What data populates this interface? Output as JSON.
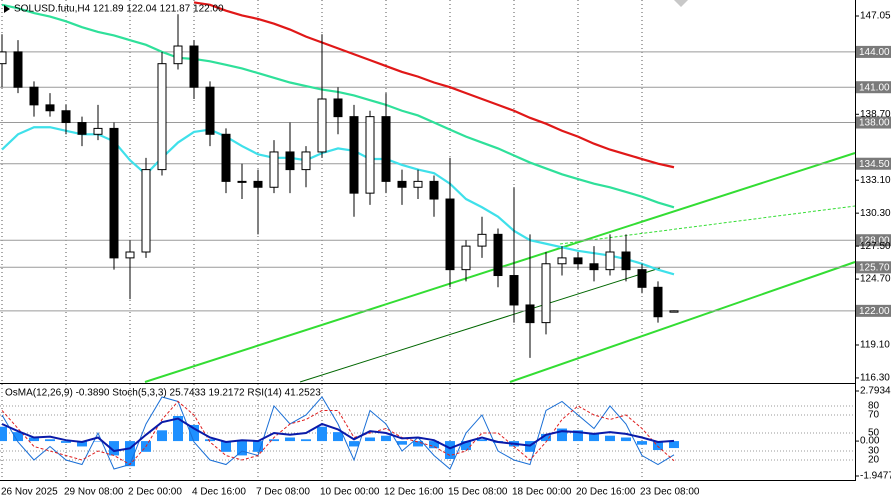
{
  "chart_data": [
    {
      "type": "candlestick",
      "title": "SOLUSD.futu,H4 121.89 122.04 121.87 122.00",
      "categories": [
        "26 Nov 2025",
        null,
        null,
        null,
        "29 Nov 08:00",
        null,
        null,
        null,
        "2 Dec 00:00",
        null,
        null,
        null,
        "4 Dec 16:00",
        null,
        null,
        null,
        "7 Dec 08:00",
        null,
        null,
        null,
        "10 Dec 00:00",
        null,
        null,
        null,
        "12 Dec 16:00",
        null,
        null,
        null,
        "15 Dec 08:00",
        null,
        null,
        null,
        "18 Dec 00:00",
        null,
        null,
        null,
        "20 Dec 16:00",
        null,
        null,
        null,
        "23 Dec 08:00",
        null,
        null
      ],
      "open": [
        143,
        144,
        141,
        139.5,
        139,
        138,
        137,
        137.5,
        126.5,
        127,
        134,
        143,
        144.5,
        141,
        137,
        133,
        133,
        132.5,
        135.5,
        134,
        135.5,
        140,
        138.5,
        132,
        138.5,
        133,
        132.5,
        133,
        131.5,
        125.5,
        127.5,
        128.5,
        125,
        122.5,
        121,
        126,
        126.5,
        126,
        125.5,
        127,
        125.5,
        124,
        121.89
      ],
      "high": [
        145.5,
        145,
        141.5,
        140.5,
        139.5,
        138.5,
        139.5,
        138,
        128,
        135,
        144,
        147.2,
        145,
        141.5,
        137.5,
        134.5,
        134,
        136.5,
        138,
        136,
        145.5,
        141,
        139.5,
        139,
        140.5,
        134,
        134,
        133.5,
        135,
        128,
        130,
        129,
        132.5,
        128.5,
        127,
        127.5,
        127,
        127.5,
        128.5,
        128.5,
        126,
        124.5,
        122.04
      ],
      "low": [
        141,
        140.5,
        138.5,
        138.5,
        137,
        136,
        136.5,
        125.5,
        123,
        126.5,
        133.5,
        142.5,
        140,
        136,
        132,
        131.5,
        128.5,
        132,
        132,
        132.5,
        135,
        137,
        130,
        131,
        132,
        131,
        131.5,
        130,
        124,
        124.5,
        126.5,
        124,
        121,
        118,
        120,
        125,
        125.5,
        124.5,
        125,
        124.5,
        123.5,
        121,
        121.87
      ],
      "close": [
        144,
        141,
        139.5,
        139,
        138,
        137,
        137.5,
        126.5,
        127,
        134,
        143,
        144.5,
        141,
        137,
        133,
        133,
        132.5,
        135.5,
        134,
        135.5,
        140,
        138.5,
        132,
        138.5,
        133,
        132.5,
        133,
        131.5,
        125.5,
        127.5,
        128.5,
        125,
        122.5,
        121,
        126,
        126.5,
        126,
        125.5,
        127,
        125.5,
        124,
        121.5,
        122.0
      ],
      "up_color": "#ffffff",
      "down_color": "#000000",
      "lines": [
        {
          "color": "#e01818",
          "values": [
            null,
            null,
            null,
            null,
            null,
            null,
            null,
            null,
            null,
            null,
            null,
            null,
            148.2,
            148.0,
            147.5,
            147.1,
            146.8,
            146.4,
            145.9,
            145.3,
            144.8,
            144.3,
            143.8,
            143.3,
            142.8,
            142.3,
            141.9,
            141.4,
            141.0,
            140.5,
            140.0,
            139.5,
            139.0,
            138.4,
            137.9,
            137.3,
            136.8,
            136.2,
            135.7,
            135.3,
            134.9,
            134.5,
            134.2
          ]
        },
        {
          "color": "#2fe09a",
          "values": [
            148.0,
            147.7,
            147.3,
            147.0,
            146.6,
            146.1,
            145.7,
            145.4,
            145.0,
            144.6,
            144.0,
            143.5,
            143.4,
            143.2,
            142.9,
            142.6,
            142.2,
            141.8,
            141.4,
            141.1,
            140.8,
            140.6,
            140.3,
            139.9,
            139.5,
            139.0,
            138.6,
            138.0,
            137.4,
            136.8,
            136.3,
            135.8,
            135.2,
            134.6,
            134.1,
            133.6,
            133.2,
            132.8,
            132.5,
            132.1,
            131.7,
            131.2,
            130.8
          ]
        },
        {
          "color": "#3fe0ea",
          "values": [
            135.7,
            137.0,
            137.6,
            137.6,
            137.3,
            137.0,
            137.0,
            136.4,
            134.8,
            133.6,
            135.0,
            136.3,
            137.2,
            137.4,
            136.8,
            136.0,
            135.3,
            135.0,
            135.0,
            134.8,
            135.4,
            135.8,
            135.6,
            134.9,
            134.9,
            134.4,
            134.0,
            133.7,
            132.8,
            131.5,
            130.8,
            130.0,
            128.8,
            128.0,
            127.7,
            127.4,
            127.1,
            126.9,
            126.7,
            126.4,
            126.0,
            125.5,
            125.1
          ]
        }
      ],
      "ylim": [
        115.87,
        148.41
      ],
      "yticks": [
        147.05,
        {
          "value": 138.7,
          "label": "138.70"
        },
        {
          "value": 133.1,
          "label": "133.10"
        },
        {
          "value": 130.3,
          "label": "130.30"
        },
        {
          "value": 127.5,
          "label": "127.50"
        },
        {
          "value": 124.7,
          "label": "124.70"
        },
        {
          "value": 119.1,
          "label": "119.10"
        },
        {
          "value": 116.3,
          "label": "116.30"
        }
      ],
      "levels": [
        {
          "value": 144.0,
          "label": "144.00"
        },
        {
          "value": 141.0,
          "label": "141.00"
        },
        {
          "value": 138.0,
          "label": "138.00"
        },
        {
          "value": 134.5,
          "label": "134.50"
        },
        {
          "value": 128.0,
          "label": "128.00"
        },
        {
          "value": 125.7,
          "label": "125.70"
        },
        {
          "value": 122.0,
          "label": "122.00"
        }
      ],
      "grid": true
    },
    {
      "type": "oscillator",
      "title": "OsMA(12,26,9) -0.3890  Stoch(5,3,3) 25.7433 19.2172  RSI(14) 41.2523",
      "ylim": [
        -2.171,
        3.184
      ],
      "yticks": [
        2.7934,
        {
          "value": 0,
          "label": "0.00"
        },
        -1.9477
      ],
      "y2lim": [
        -2.2,
        104.4
      ],
      "y2ticks": [
        80,
        70,
        50,
        30,
        20
      ],
      "histogram": {
        "color": "#1e90ff",
        "values": [
          0.8,
          0.5,
          0.2,
          0.1,
          -0.1,
          -0.3,
          0,
          -0.8,
          -1.4,
          -0.6,
          0.6,
          1.4,
          0.9,
          0.1,
          -0.6,
          -0.8,
          -0.6,
          0.1,
          0.2,
          0.1,
          0.8,
          0.5,
          -0.3,
          0.2,
          0.3,
          -0.2,
          -0.3,
          -0.4,
          -1.0,
          -0.5,
          0.1,
          -0.1,
          -0.3,
          -0.6,
          0.4,
          0.7,
          0.6,
          0.4,
          0.3,
          0.2,
          -0.2,
          -0.5,
          -0.389
        ]
      },
      "series": [
        {
          "color": "#1a6fd6",
          "axis": "y2",
          "dashed": false,
          "width": 1,
          "values": [
            70,
            40,
            20,
            35,
            20,
            15,
            50,
            10,
            15,
            60,
            90,
            85,
            40,
            20,
            15,
            30,
            25,
            80,
            60,
            70,
            90,
            60,
            20,
            75,
            60,
            30,
            45,
            25,
            10,
            50,
            70,
            30,
            20,
            15,
            75,
            85,
            70,
            55,
            80,
            60,
            25,
            15,
            25.7433
          ]
        },
        {
          "color": "#e02020",
          "axis": "y2",
          "dashed": true,
          "width": 1,
          "values": [
            75,
            55,
            35,
            30,
            25,
            20,
            30,
            25,
            15,
            35,
            65,
            85,
            70,
            40,
            25,
            20,
            25,
            45,
            60,
            65,
            75,
            75,
            45,
            50,
            55,
            45,
            40,
            35,
            25,
            30,
            50,
            50,
            35,
            20,
            40,
            65,
            80,
            70,
            65,
            70,
            55,
            35,
            19.2172
          ]
        },
        {
          "color": "#0a1aa8",
          "axis": "y2",
          "dashed": false,
          "width": 2,
          "values": [
            60,
            52,
            45,
            46,
            42,
            40,
            45,
            30,
            33,
            48,
            62,
            66,
            55,
            45,
            40,
            42,
            41,
            50,
            48,
            50,
            60,
            54,
            43,
            52,
            50,
            44,
            45,
            42,
            33,
            40,
            45,
            40,
            38,
            36,
            48,
            52,
            51,
            49,
            51,
            49,
            45,
            40,
            41.2523
          ]
        }
      ]
    }
  ]
}
